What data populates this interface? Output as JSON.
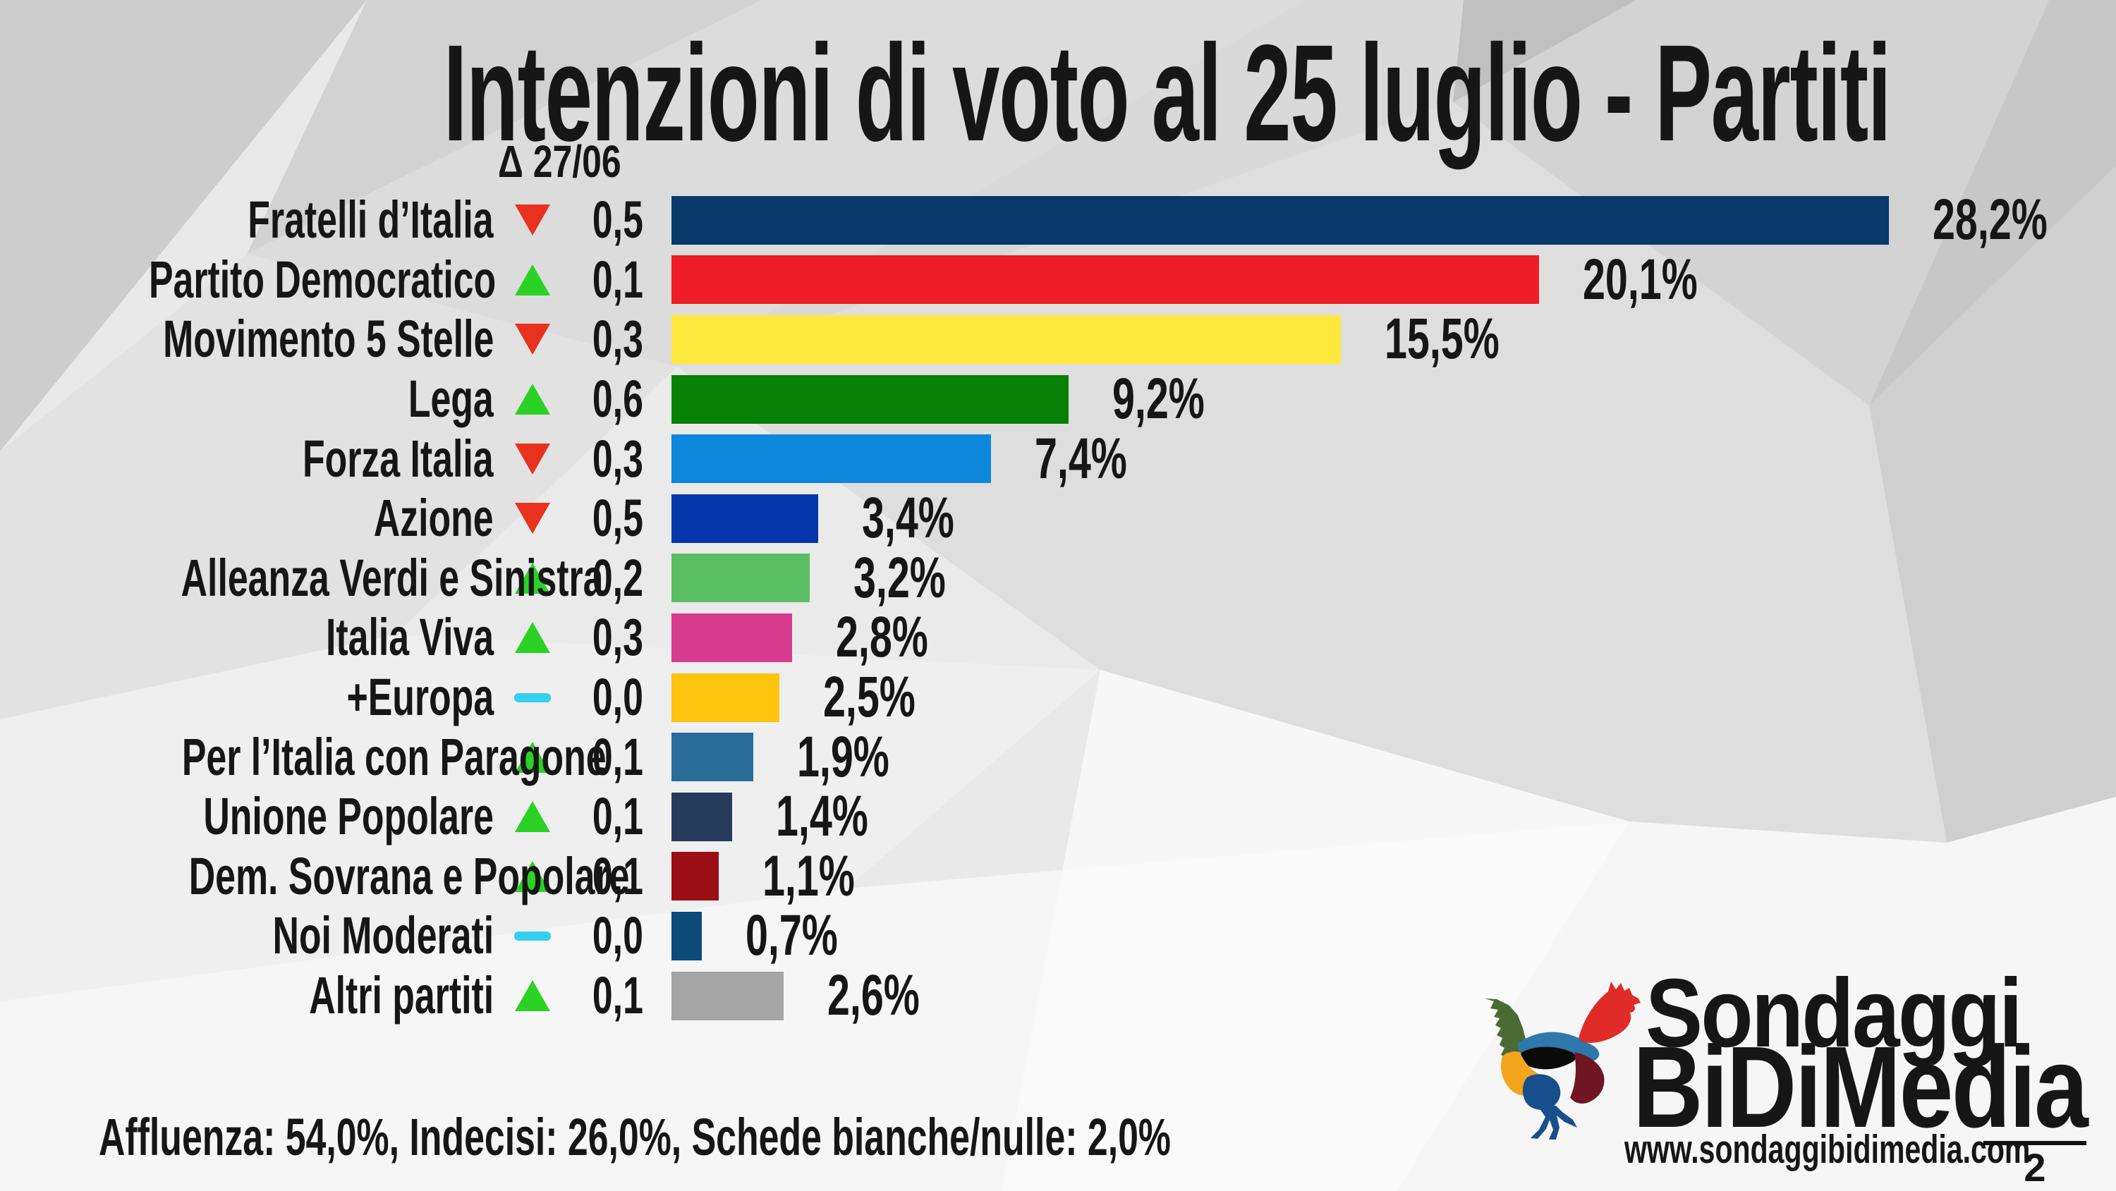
{
  "title": "Intenzioni di voto al 25 luglio - Partiti",
  "footnote": "Affluenza: 54,0%, Indecisi: 26,0%, Schede bianche/nulle: 2,0%",
  "status_colors": {
    "up": "#2bd125",
    "down": "#e8311f",
    "flat": "#35d0ee"
  },
  "logo": {
    "line1": "Sondaggi",
    "line2": "BiDiMedia",
    "website": "www.sondaggibidimedia.com",
    "page_number": "2"
  },
  "chart_data": {
    "type": "bar",
    "orientation": "horizontal",
    "title": "Intenzioni di voto al 25 luglio - Partiti",
    "delta_header": "Δ 27/06",
    "value_suffix": "%",
    "xlim": [
      0,
      30
    ],
    "grid": false,
    "legend": "none",
    "categories": [
      "Fratelli d’Italia",
      "Partito Democratico",
      "Movimento 5 Stelle",
      "Lega",
      "Forza Italia",
      "Azione",
      "Alleanza Verdi e Sinistra",
      "Italia Viva",
      "+Europa",
      "Per l’Italia con Paragone",
      "Unione Popolare",
      "Dem. Sovrana e Popolare",
      "Noi Moderati",
      "Altri partiti"
    ],
    "rows": [
      {
        "label": "Fratelli d’Italia",
        "delta_direction": "down",
        "delta_value": 0.5,
        "delta_label": "0,5",
        "value": 28.2,
        "value_label": "28,2%",
        "color": "#083968",
        "textured": false
      },
      {
        "label": "Partito Democratico",
        "delta_direction": "up",
        "delta_value": 0.1,
        "delta_label": "0,1",
        "value": 20.1,
        "value_label": "20,1%",
        "color": "#ee1c26",
        "textured": false
      },
      {
        "label": "Movimento 5 Stelle",
        "delta_direction": "down",
        "delta_value": 0.3,
        "delta_label": "0,3",
        "value": 15.5,
        "value_label": "15,5%",
        "color": "#ffe83e",
        "textured": false
      },
      {
        "label": "Lega",
        "delta_direction": "up",
        "delta_value": 0.6,
        "delta_label": "0,6",
        "value": 9.2,
        "value_label": "9,2%",
        "color": "#068106",
        "textured": false
      },
      {
        "label": "Forza Italia",
        "delta_direction": "down",
        "delta_value": 0.3,
        "delta_label": "0,3",
        "value": 7.4,
        "value_label": "7,4%",
        "color": "#0d87dc",
        "textured": false
      },
      {
        "label": "Azione",
        "delta_direction": "down",
        "delta_value": 0.5,
        "delta_label": "0,5",
        "value": 3.4,
        "value_label": "3,4%",
        "color": "#0537ab",
        "textured": false
      },
      {
        "label": "Alleanza Verdi e Sinistra",
        "delta_direction": "up",
        "delta_value": 0.2,
        "delta_label": "0,2",
        "value": 3.2,
        "value_label": "3,2%",
        "color": "#5abe63",
        "textured": false
      },
      {
        "label": "Italia Viva",
        "delta_direction": "up",
        "delta_value": 0.3,
        "delta_label": "0,3",
        "value": 2.8,
        "value_label": "2,8%",
        "color": "#d63b8e",
        "textured": false
      },
      {
        "label": "+Europa",
        "delta_direction": "flat",
        "delta_value": 0.0,
        "delta_label": "0,0",
        "value": 2.5,
        "value_label": "2,5%",
        "color": "#fdc30d",
        "textured": false
      },
      {
        "label": "Per l’Italia con Paragone",
        "delta_direction": "up",
        "delta_value": 0.1,
        "delta_label": "0,1",
        "value": 1.9,
        "value_label": "1,9%",
        "color": "#2a6d9a",
        "textured": true
      },
      {
        "label": "Unione Popolare",
        "delta_direction": "up",
        "delta_value": 0.1,
        "delta_label": "0,1",
        "value": 1.4,
        "value_label": "1,4%",
        "color": "#263a5c",
        "textured": true
      },
      {
        "label": "Dem. Sovrana e Popolare",
        "delta_direction": "up",
        "delta_value": 0.1,
        "delta_label": "0,1",
        "value": 1.1,
        "value_label": "1,1%",
        "color": "#9a0d14",
        "textured": true
      },
      {
        "label": "Noi Moderati",
        "delta_direction": "flat",
        "delta_value": 0.0,
        "delta_label": "0,0",
        "value": 0.7,
        "value_label": "0,7%",
        "color": "#0c4a78",
        "textured": false
      },
      {
        "label": "Altri partiti",
        "delta_direction": "up",
        "delta_value": 0.1,
        "delta_label": "0,1",
        "value": 2.6,
        "value_label": "2,6%",
        "color": "#a5a5a5",
        "textured": true
      }
    ]
  }
}
